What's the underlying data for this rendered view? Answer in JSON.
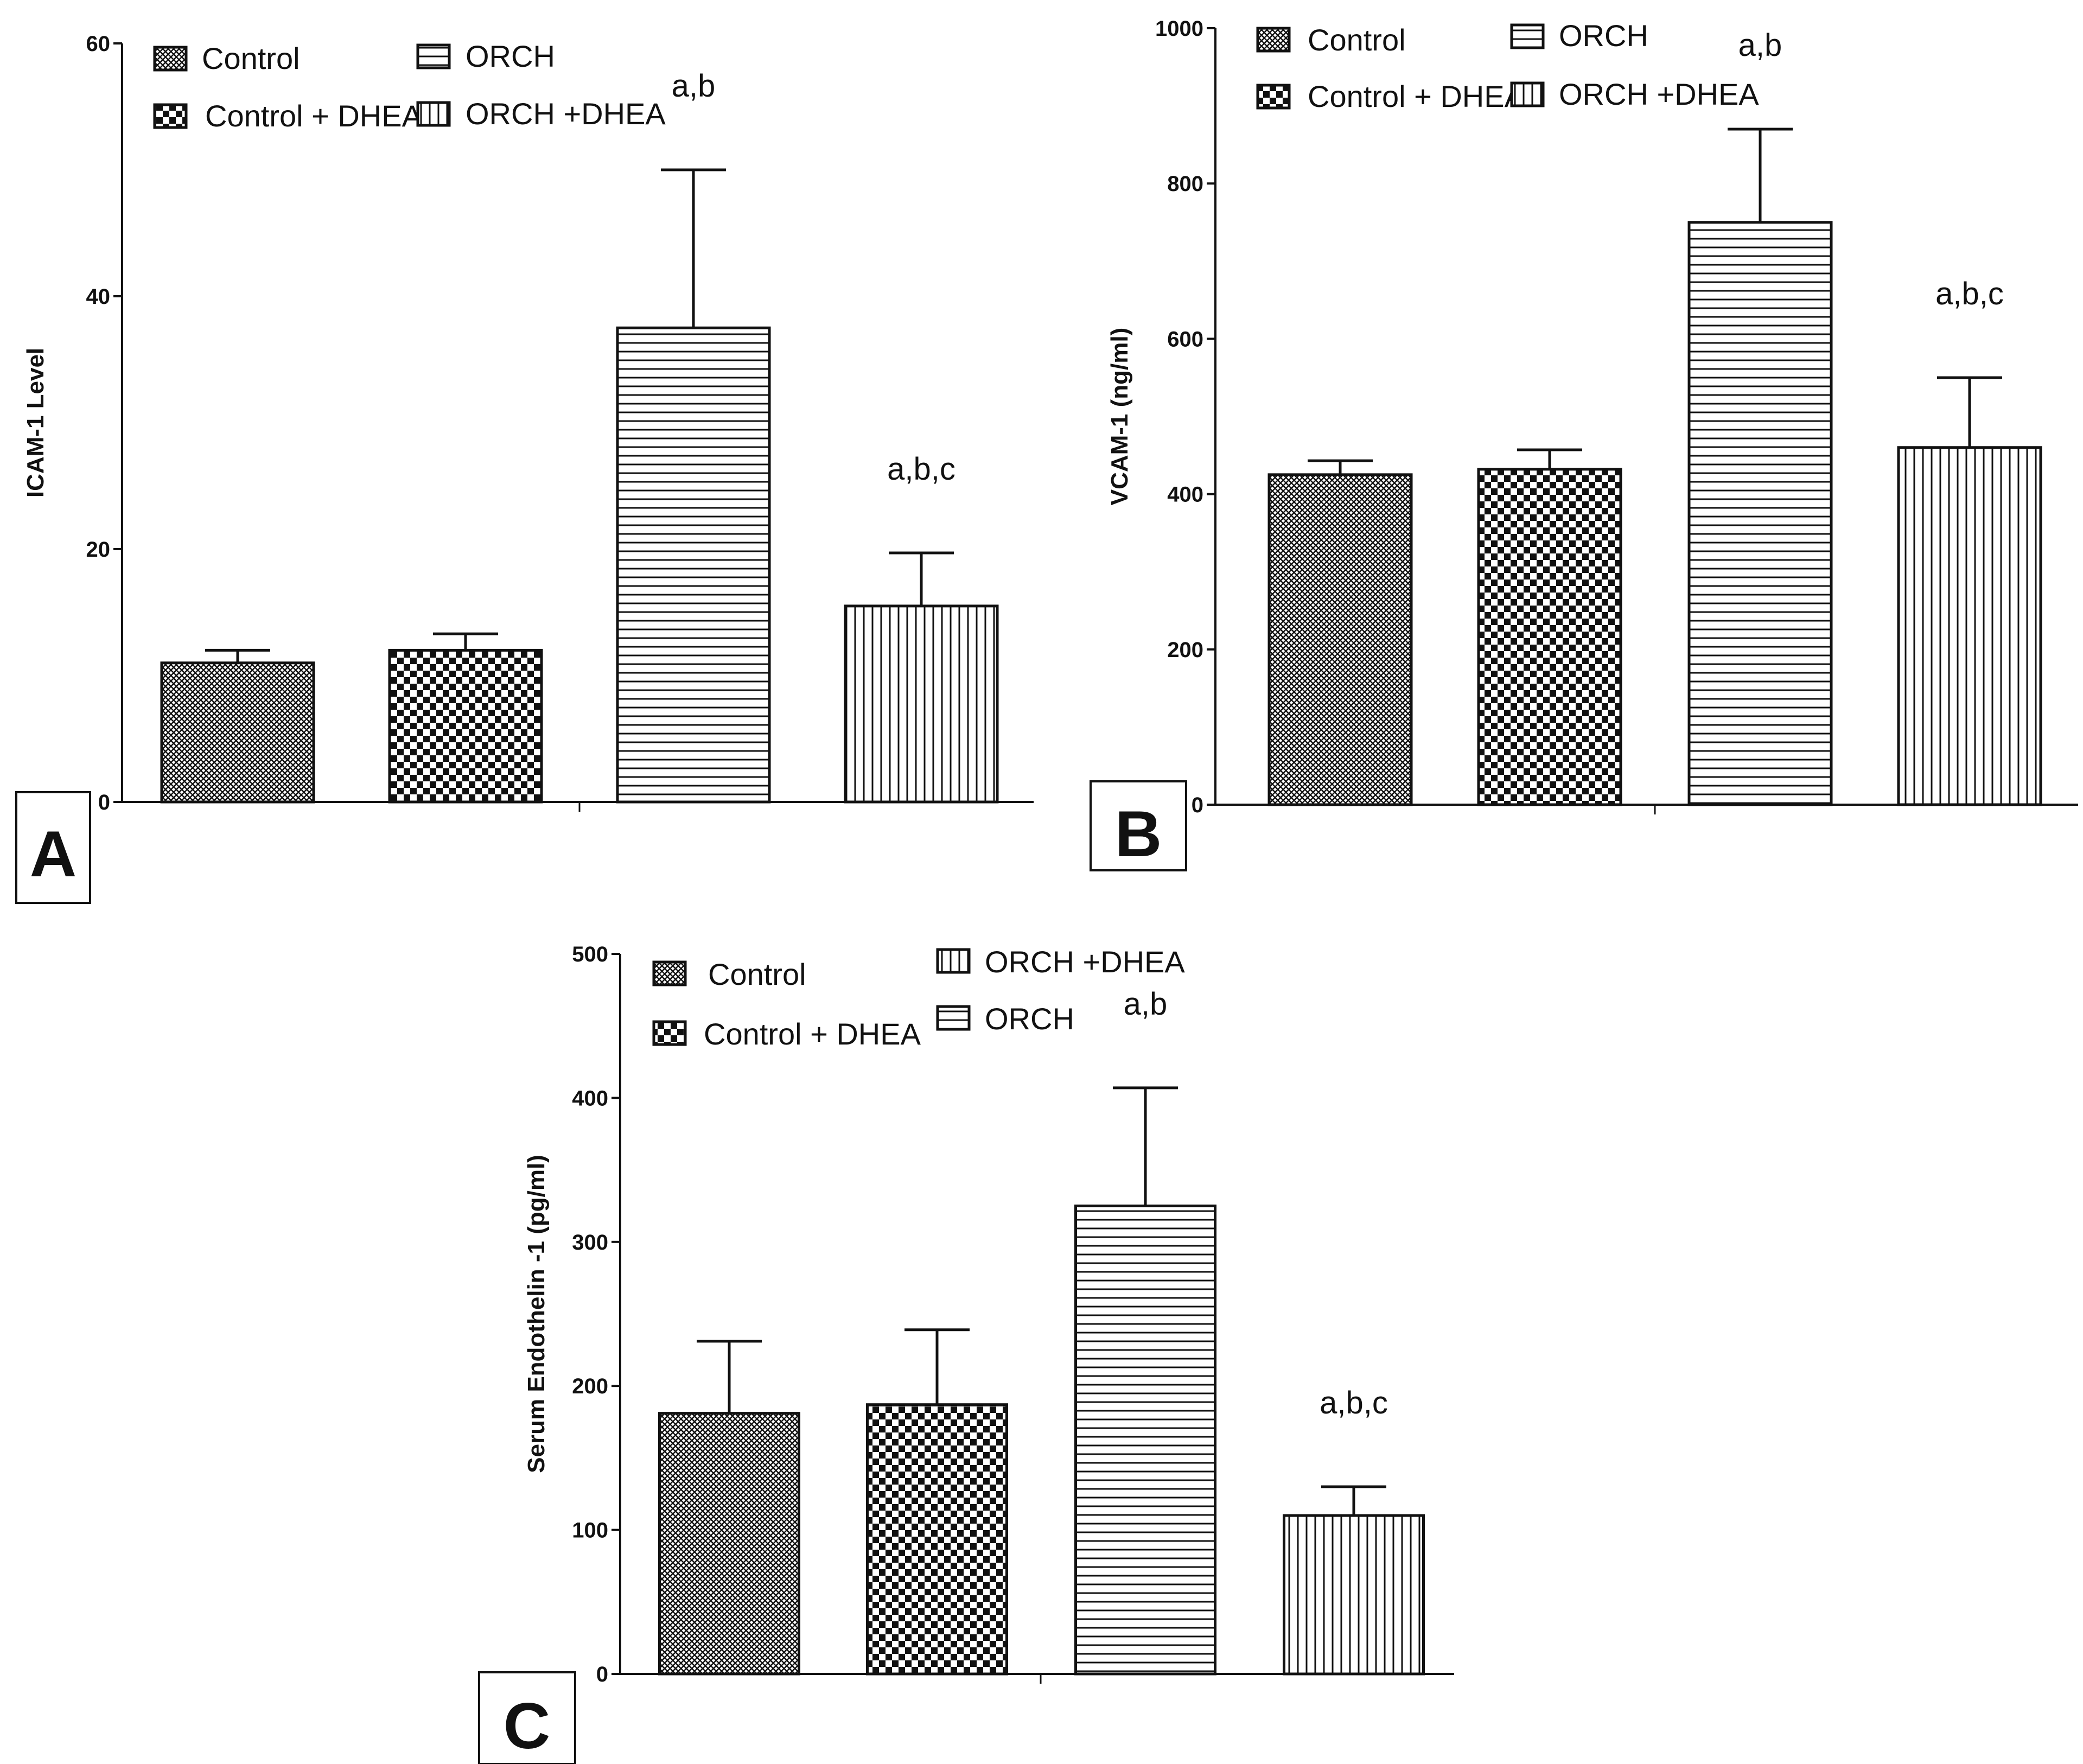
{
  "chart_data": [
    {
      "panel": "A",
      "type": "bar",
      "categories": [
        "Control",
        "Control + DHEA",
        "ORCH",
        "ORCH +DHEA"
      ],
      "values": [
        11,
        12,
        37.5,
        15.5
      ],
      "errors": [
        1,
        1.3,
        12.5,
        4.2
      ],
      "annotations": [
        "",
        "",
        "a,b",
        "a,b,c"
      ],
      "ylabel": "ICAM-1 Level",
      "ylim": [
        0,
        60
      ],
      "yticks": [
        "0",
        "20",
        "40",
        "60"
      ],
      "legend": [
        "Control",
        "Control + DHEA",
        "ORCH",
        "ORCH +DHEA"
      ]
    },
    {
      "panel": "B",
      "type": "bar",
      "categories": [
        "Control",
        "Control + DHEA",
        "ORCH",
        "ORCH +DHEA"
      ],
      "values": [
        425,
        432,
        750,
        460
      ],
      "errors": [
        18,
        25,
        120,
        90
      ],
      "annotations": [
        "",
        "",
        "a,b",
        "a,b,c"
      ],
      "ylabel": "VCAM-1 (ng/ml)",
      "ylim": [
        0,
        1000
      ],
      "yticks": [
        "0",
        "200",
        "400",
        "600",
        "800",
        "1000"
      ],
      "legend": [
        "Control",
        "ORCH",
        "Control + DHEA",
        "ORCH +DHEA"
      ]
    },
    {
      "panel": "C",
      "type": "bar",
      "categories": [
        "Control",
        "Control + DHEA",
        "ORCH",
        "ORCH +DHEA"
      ],
      "values": [
        181,
        187,
        325,
        110
      ],
      "errors": [
        50,
        52,
        82,
        20
      ],
      "annotations": [
        "",
        "",
        "a,b",
        "a,b,c"
      ],
      "ylabel": "Serum Endothelin -1 (pg/ml)",
      "ylim": [
        0,
        500
      ],
      "yticks": [
        "0",
        "100",
        "200",
        "300",
        "400",
        "500"
      ],
      "legend": [
        "Control",
        "ORCH +DHEA",
        "Control + DHEA",
        "ORCH"
      ]
    }
  ]
}
